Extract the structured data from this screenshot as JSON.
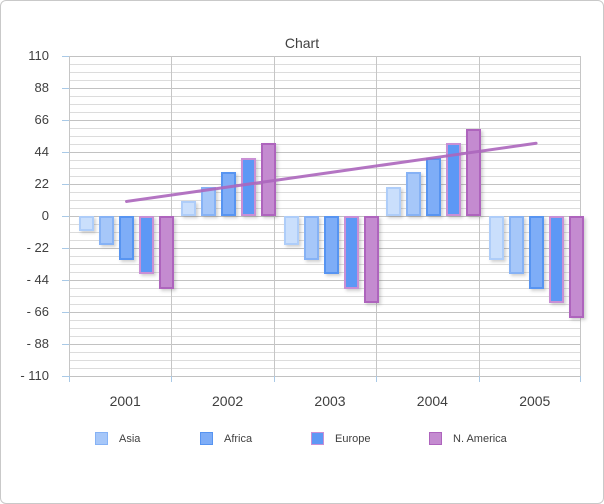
{
  "window": {
    "background": "#ffffff",
    "border_color": "#c9c9c9"
  },
  "chart_data": {
    "type": "bar",
    "title": "Chart",
    "categories": [
      "2001",
      "2002",
      "2003",
      "2004",
      "2005"
    ],
    "series": [
      {
        "name": "",
        "fill": "#cadffc",
        "border": "#aecdf9",
        "values": [
          -10,
          10,
          -20,
          20,
          -30
        ]
      },
      {
        "name": "Asia",
        "fill": "#a6c7f9",
        "border": "#86b2f5",
        "values": [
          -20,
          20,
          -30,
          30,
          -40
        ]
      },
      {
        "name": "Africa",
        "fill": "#7eadf7",
        "border": "#5794f1",
        "values": [
          -30,
          30,
          -40,
          40,
          -50
        ]
      },
      {
        "name": "Europe",
        "fill": "#5d98f5",
        "border": "#c98fd5",
        "values": [
          -40,
          40,
          -50,
          50,
          -60
        ]
      },
      {
        "name": "N. America",
        "fill": "#c48bd0",
        "border": "#ae64bd",
        "values": [
          -50,
          50,
          -60,
          60,
          -70
        ]
      }
    ],
    "trend_line": {
      "color": "#ac66bd",
      "values": [
        10,
        20,
        30,
        40,
        50
      ]
    },
    "legend_labels": [
      "Asia",
      "Africa",
      "Europe",
      "N. America"
    ],
    "legend_position": "bottom",
    "y_axis": {
      "min": -110,
      "max": 110,
      "major_step": 22,
      "minor_step": 5.5,
      "tick_labels": [
        "110",
        "88",
        "66",
        "44",
        "22",
        "0",
        "- 22",
        "- 44",
        "- 66",
        "- 88",
        "- 110"
      ]
    },
    "grid": {
      "major_color": "#c2c2c2",
      "minor_color": "#dcdcdc",
      "boundary_color": "#c6c6c6",
      "tick_color": "#a9c9e6"
    }
  }
}
